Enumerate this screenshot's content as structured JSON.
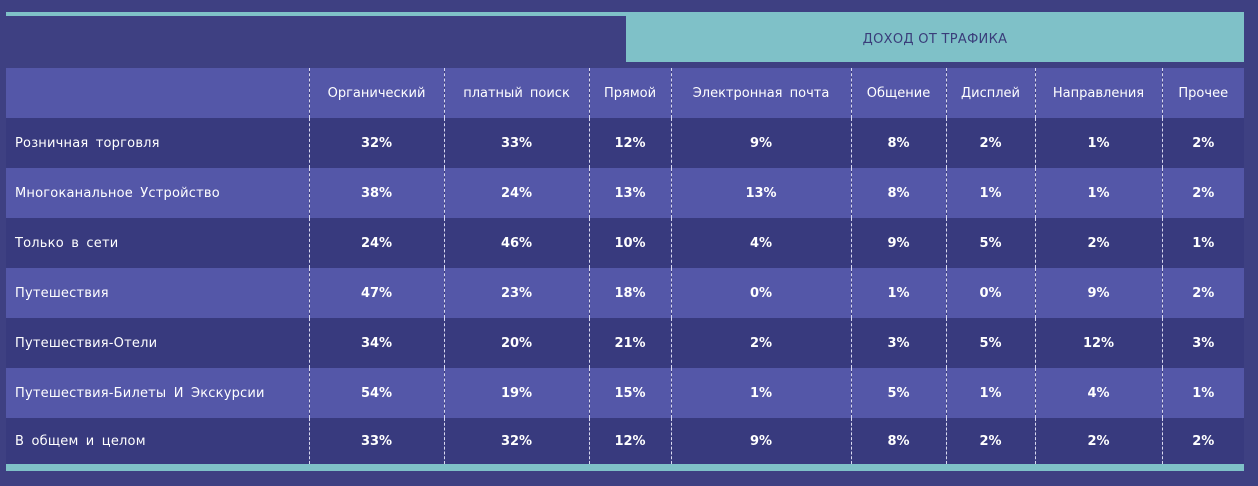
{
  "chart_data": {
    "type": "table",
    "title": "ДОХОД ОТ ТРАФИКА",
    "columns": [
      "",
      "Органический",
      "платный поиск",
      "Прямой",
      "Электронная почта",
      "Общение",
      "Дисплей",
      "Направления",
      "Прочее"
    ],
    "rows": [
      {
        "label": "Розничная торговля",
        "values": [
          "32%",
          "33%",
          "12%",
          "9%",
          "8%",
          "2%",
          "1%",
          "2%"
        ]
      },
      {
        "label": "Многоканальное Устройство",
        "values": [
          "38%",
          "24%",
          "13%",
          "13%",
          "8%",
          "1%",
          "1%",
          "2%"
        ]
      },
      {
        "label": "Только в сети",
        "values": [
          "24%",
          "46%",
          "10%",
          "4%",
          "9%",
          "5%",
          "2%",
          "1%"
        ]
      },
      {
        "label": "Путешествия",
        "values": [
          "47%",
          "23%",
          "18%",
          "0%",
          "1%",
          "0%",
          "9%",
          "2%"
        ]
      },
      {
        "label": "Путешествия-Отели",
        "values": [
          "34%",
          "20%",
          "21%",
          "2%",
          "3%",
          "5%",
          "12%",
          "3%"
        ]
      },
      {
        "label": "Путешествия-Билеты И Экскурсии",
        "values": [
          "54%",
          "19%",
          "15%",
          "1%",
          "5%",
          "1%",
          "4%",
          "1%"
        ]
      },
      {
        "label": "В общем и целом",
        "values": [
          "33%",
          "32%",
          "12%",
          "9%",
          "8%",
          "2%",
          "2%",
          "2%"
        ]
      }
    ]
  },
  "colors": {
    "background": "#3e4082",
    "accent": "#7fc1c8",
    "row_dark": "#383a7e",
    "row_light": "#5457a8",
    "text": "#ffffff"
  }
}
